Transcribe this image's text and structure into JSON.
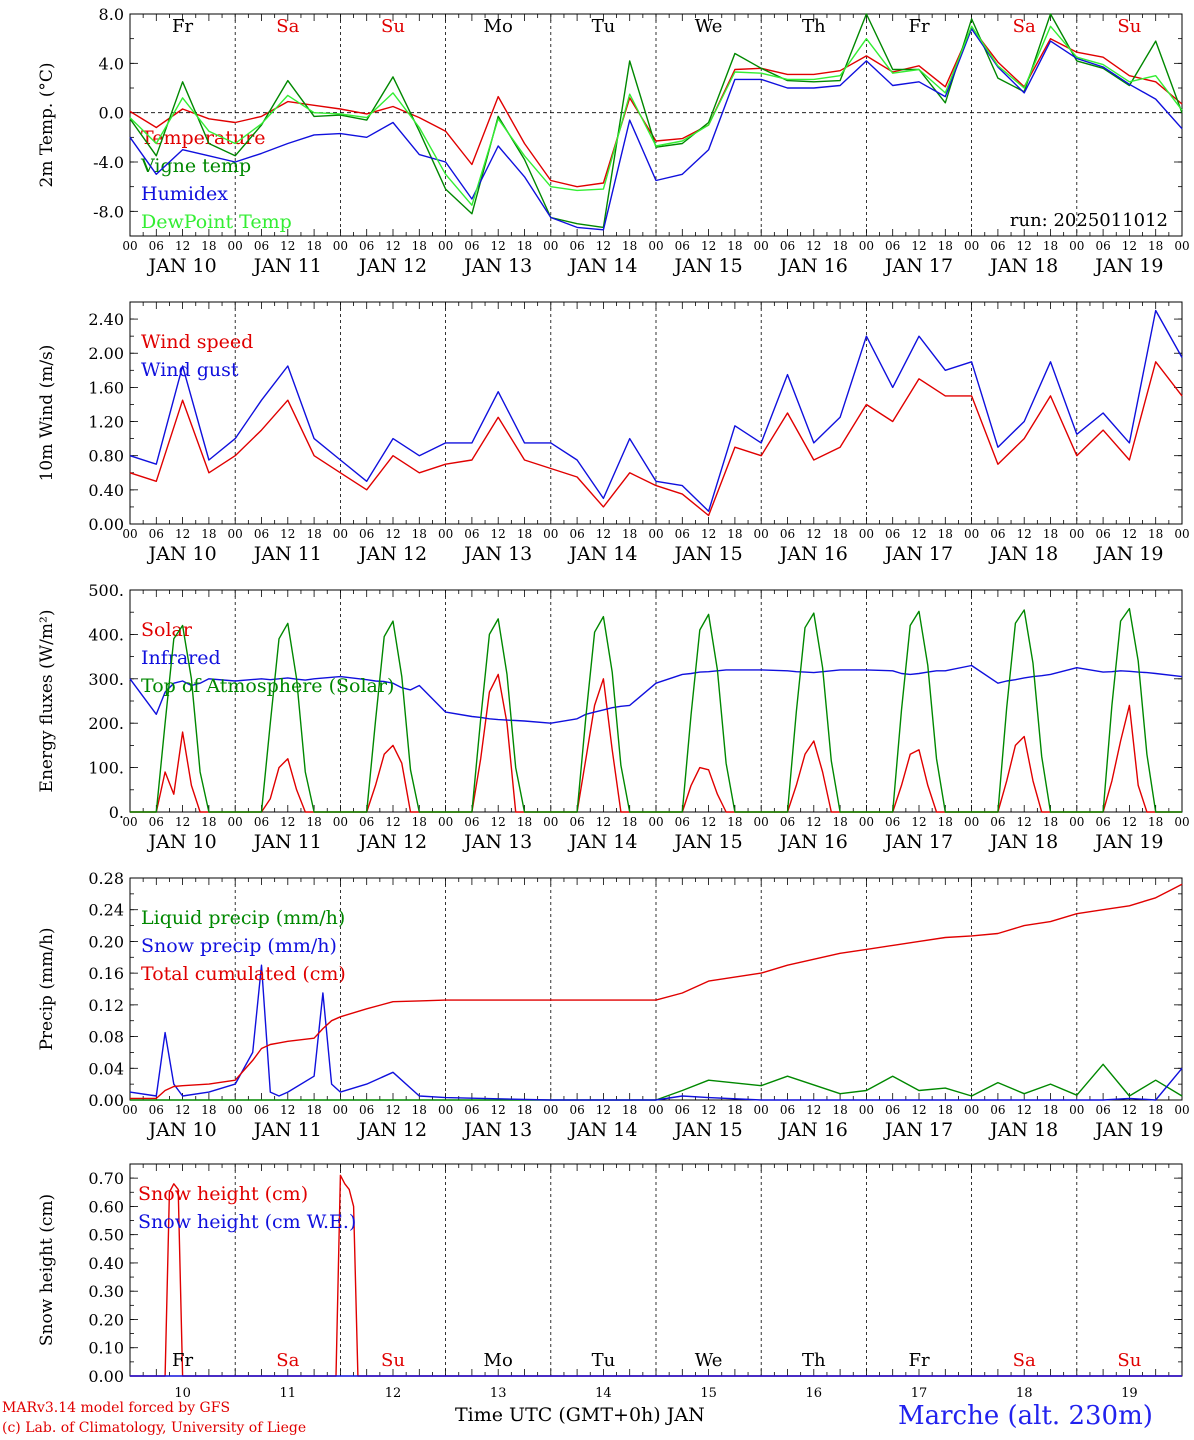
{
  "footer": {
    "model_line": "MARv3.14 model forced by GFS",
    "lab_line": "(c) Lab. of Climatology, University of Liege",
    "time_axis_label": "Time UTC (GMT+0h) JAN",
    "station": "Marche (alt. 230m)"
  },
  "time_axis": {
    "hour_ticks": [
      "00",
      "06",
      "12",
      "18"
    ],
    "final_tick": "00",
    "days": [
      {
        "date": "JAN 10",
        "num": "10",
        "weekday": "Fr",
        "weekend": false
      },
      {
        "date": "JAN 11",
        "num": "11",
        "weekday": "Sa",
        "weekend": true
      },
      {
        "date": "JAN 12",
        "num": "12",
        "weekday": "Su",
        "weekend": true
      },
      {
        "date": "JAN 13",
        "num": "13",
        "weekday": "Mo",
        "weekend": false
      },
      {
        "date": "JAN 14",
        "num": "14",
        "weekday": "Tu",
        "weekend": false
      },
      {
        "date": "JAN 15",
        "num": "15",
        "weekday": "We",
        "weekend": false
      },
      {
        "date": "JAN 16",
        "num": "16",
        "weekday": "Th",
        "weekend": false
      },
      {
        "date": "JAN 17",
        "num": "17",
        "weekday": "Fr",
        "weekend": false
      },
      {
        "date": "JAN 18",
        "num": "18",
        "weekday": "Sa",
        "weekend": true
      },
      {
        "date": "JAN 19",
        "num": "19",
        "weekday": "Su",
        "weekend": true
      }
    ]
  },
  "colors": {
    "red": "#e00000",
    "green": "#008800",
    "blue": "#1010dd",
    "lightgreen": "#33ee33",
    "weekend": "#e00000",
    "axis": "#000000"
  },
  "chart_data": [
    {
      "type": "line",
      "ylabel": "2m Temp. (°C)",
      "ylim": [
        -10,
        8
      ],
      "yticks": [
        "8.0",
        "4.0",
        "0.0",
        "-4.0",
        "-8.0"
      ],
      "ytick_values": [
        8,
        4,
        0,
        -4,
        -8
      ],
      "zero_line": true,
      "annotation": "run: 2025011012",
      "x_hours": [
        0,
        6,
        12,
        18,
        24,
        30,
        36,
        42,
        48,
        54,
        60,
        66,
        72,
        78,
        84,
        90,
        96,
        102,
        108,
        114,
        120,
        126,
        132,
        138,
        144,
        150,
        156,
        162,
        168,
        174,
        180,
        186,
        192,
        198,
        204,
        210,
        216,
        222,
        228,
        234,
        240
      ],
      "series": [
        {
          "name": "Temperature",
          "color": "red",
          "values": [
            0.1,
            -1.2,
            0.3,
            -0.5,
            -0.8,
            -0.3,
            0.9,
            0.6,
            0.3,
            -0.1,
            0.5,
            -0.4,
            -1.5,
            -4.2,
            1.3,
            -2.5,
            -5.5,
            -6.0,
            -5.7,
            1.2,
            -2.3,
            -2.1,
            -1.0,
            3.5,
            3.6,
            3.1,
            3.1,
            3.4,
            4.6,
            3.3,
            3.8,
            2.1,
            6.9,
            4.1,
            2.1,
            6.0,
            4.9,
            4.5,
            3.0,
            2.5,
            0.7
          ]
        },
        {
          "name": "Vigne temp",
          "color": "green",
          "values": [
            -0.5,
            -3.5,
            2.5,
            -2.5,
            -3.5,
            -1.0,
            2.6,
            -0.3,
            -0.2,
            -0.6,
            2.9,
            -1.5,
            -6.2,
            -8.2,
            -0.3,
            -3.8,
            -8.5,
            -9.0,
            -9.3,
            4.2,
            -2.8,
            -2.5,
            -0.8,
            4.8,
            3.6,
            2.6,
            2.5,
            2.6,
            8.0,
            3.5,
            3.5,
            0.8,
            7.6,
            2.8,
            1.7,
            8.0,
            4.2,
            3.6,
            2.2,
            5.8,
            0.0
          ]
        },
        {
          "name": "Humidex",
          "color": "blue",
          "values": [
            -2.0,
            -5.0,
            -3.0,
            -3.5,
            -4.0,
            -3.3,
            -2.5,
            -1.8,
            -1.7,
            -2.0,
            -0.8,
            -3.4,
            -4.0,
            -7.0,
            -2.7,
            -5.2,
            -8.5,
            -9.3,
            -9.5,
            -0.6,
            -5.5,
            -5.0,
            -3.0,
            2.7,
            2.7,
            2.0,
            2.0,
            2.2,
            4.2,
            2.2,
            2.5,
            1.3,
            6.8,
            3.7,
            1.6,
            5.8,
            4.4,
            3.7,
            2.3,
            1.1,
            -1.3
          ]
        },
        {
          "name": "DewPoint Temp",
          "color": "lightgreen",
          "values": [
            -0.4,
            -2.5,
            1.2,
            -1.5,
            -2.5,
            -0.9,
            1.4,
            0.0,
            -0.1,
            -0.4,
            1.6,
            -1.2,
            -5.0,
            -7.5,
            -0.5,
            -3.5,
            -6.0,
            -6.3,
            -6.2,
            1.5,
            -2.7,
            -2.3,
            -1.0,
            3.3,
            3.2,
            2.7,
            2.7,
            3.0,
            6.0,
            3.2,
            3.5,
            1.6,
            7.0,
            3.8,
            2.0,
            7.0,
            4.5,
            3.9,
            2.5,
            3.0,
            0.2
          ]
        }
      ]
    },
    {
      "type": "line",
      "ylabel": "10m Wind (m/s)",
      "ylim": [
        0,
        2.6
      ],
      "yticks": [
        "2.40",
        "2.00",
        "1.60",
        "1.20",
        "0.80",
        "0.40",
        "0.00"
      ],
      "ytick_values": [
        2.4,
        2.0,
        1.6,
        1.2,
        0.8,
        0.4,
        0.0
      ],
      "x_hours": [
        0,
        6,
        12,
        18,
        24,
        30,
        36,
        42,
        48,
        54,
        60,
        66,
        72,
        78,
        84,
        90,
        96,
        102,
        108,
        114,
        120,
        126,
        132,
        138,
        144,
        150,
        156,
        162,
        168,
        174,
        180,
        186,
        192,
        198,
        204,
        210,
        216,
        222,
        228,
        234,
        240
      ],
      "series": [
        {
          "name": "Wind speed",
          "color": "red",
          "values": [
            0.6,
            0.5,
            1.45,
            0.6,
            0.8,
            1.1,
            1.45,
            0.8,
            0.6,
            0.4,
            0.8,
            0.6,
            0.7,
            0.75,
            1.25,
            0.75,
            0.65,
            0.55,
            0.2,
            0.6,
            0.45,
            0.35,
            0.1,
            0.9,
            0.8,
            1.3,
            0.75,
            0.9,
            1.4,
            1.2,
            1.7,
            1.5,
            1.5,
            0.7,
            1.0,
            1.5,
            0.8,
            1.1,
            0.75,
            1.9,
            1.5
          ]
        },
        {
          "name": "Wind gust",
          "color": "blue",
          "values": [
            0.8,
            0.7,
            1.85,
            0.75,
            1.0,
            1.45,
            1.85,
            1.0,
            0.75,
            0.5,
            1.0,
            0.8,
            0.95,
            0.95,
            1.55,
            0.95,
            0.95,
            0.75,
            0.3,
            1.0,
            0.5,
            0.45,
            0.15,
            1.15,
            0.95,
            1.75,
            0.95,
            1.25,
            2.2,
            1.6,
            2.2,
            1.8,
            1.9,
            0.9,
            1.2,
            1.9,
            1.05,
            1.3,
            0.95,
            2.5,
            1.95
          ]
        }
      ]
    },
    {
      "type": "line",
      "ylabel": "Energy fluxes (W/m²)",
      "ylim": [
        0,
        500
      ],
      "yticks": [
        "500.",
        "400.",
        "300.",
        "200.",
        "100.",
        "0."
      ],
      "ytick_values": [
        500,
        400,
        300,
        200,
        100,
        0
      ],
      "x_hours": [
        0,
        6,
        8,
        10,
        12,
        14,
        16,
        18,
        24,
        30,
        32,
        34,
        36,
        38,
        40,
        42,
        48,
        54,
        56,
        58,
        60,
        62,
        64,
        66,
        72,
        78,
        80,
        82,
        84,
        86,
        88,
        90,
        96,
        102,
        104,
        106,
        108,
        110,
        112,
        114,
        120,
        126,
        128,
        130,
        132,
        134,
        136,
        138,
        144,
        150,
        152,
        154,
        156,
        158,
        160,
        162,
        168,
        174,
        176,
        178,
        180,
        182,
        184,
        186,
        192,
        198,
        200,
        202,
        204,
        206,
        208,
        210,
        216,
        222,
        224,
        226,
        228,
        230,
        232,
        234,
        240
      ],
      "series": [
        {
          "name": "Solar",
          "color": "red",
          "values": [
            0,
            0,
            90,
            40,
            180,
            60,
            0,
            0,
            0,
            0,
            30,
            100,
            120,
            50,
            0,
            0,
            0,
            0,
            60,
            130,
            150,
            110,
            0,
            0,
            0,
            0,
            120,
            270,
            310,
            200,
            0,
            0,
            0,
            0,
            120,
            240,
            300,
            140,
            0,
            0,
            0,
            0,
            60,
            100,
            95,
            40,
            0,
            0,
            0,
            0,
            60,
            130,
            160,
            90,
            0,
            0,
            0,
            0,
            60,
            130,
            140,
            60,
            0,
            0,
            0,
            0,
            70,
            150,
            170,
            70,
            0,
            0,
            0,
            0,
            70,
            160,
            240,
            60,
            0,
            0,
            0
          ]
        },
        {
          "name": "Infrared",
          "color": "blue",
          "values": [
            300,
            220,
            270,
            290,
            295,
            285,
            290,
            300,
            295,
            300,
            298,
            300,
            302,
            299,
            297,
            300,
            305,
            298,
            295,
            294,
            290,
            280,
            275,
            285,
            225,
            215,
            213,
            210,
            208,
            207,
            206,
            205,
            200,
            210,
            220,
            225,
            230,
            235,
            238,
            240,
            290,
            310,
            312,
            315,
            316,
            318,
            320,
            320,
            320,
            318,
            316,
            315,
            314,
            316,
            318,
            320,
            320,
            318,
            312,
            310,
            312,
            315,
            318,
            318,
            330,
            290,
            295,
            298,
            302,
            305,
            307,
            310,
            325,
            315,
            316,
            318,
            317,
            315,
            314,
            312,
            305
          ]
        },
        {
          "name": "Top of Atmosphere (Solar)",
          "color": "green",
          "values": [
            0,
            0,
            200,
            390,
            420,
            300,
            90,
            0,
            0,
            0,
            200,
            390,
            425,
            300,
            90,
            0,
            0,
            0,
            205,
            395,
            430,
            305,
            95,
            0,
            0,
            0,
            210,
            400,
            435,
            310,
            100,
            0,
            0,
            0,
            215,
            405,
            440,
            315,
            105,
            0,
            0,
            0,
            220,
            410,
            445,
            320,
            110,
            0,
            0,
            0,
            225,
            415,
            448,
            325,
            115,
            0,
            0,
            0,
            230,
            420,
            452,
            330,
            120,
            0,
            0,
            0,
            235,
            425,
            455,
            335,
            125,
            0,
            0,
            0,
            240,
            430,
            458,
            340,
            130,
            0,
            0
          ]
        }
      ]
    },
    {
      "type": "line",
      "ylabel": "Precip (mm/h)",
      "ylim": [
        0,
        0.28
      ],
      "yticks": [
        "0.28",
        "0.24",
        "0.20",
        "0.16",
        "0.12",
        "0.08",
        "0.04",
        "0.00"
      ],
      "ytick_values": [
        0.28,
        0.24,
        0.2,
        0.16,
        0.12,
        0.08,
        0.04,
        0.0
      ],
      "x_hours": [
        0,
        6,
        8,
        10,
        12,
        18,
        24,
        28,
        30,
        32,
        34,
        36,
        42,
        44,
        46,
        48,
        54,
        60,
        66,
        72,
        96,
        120,
        126,
        132,
        144,
        150,
        162,
        168,
        174,
        180,
        186,
        192,
        198,
        204,
        210,
        216,
        222,
        228,
        234,
        240
      ],
      "series": [
        {
          "name": "Liquid precip (mm/h)",
          "color": "green",
          "values": [
            0,
            0,
            0,
            0,
            0,
            0,
            0,
            0,
            0,
            0,
            0,
            0,
            0,
            0,
            0,
            0,
            0,
            0,
            0,
            0,
            0,
            0,
            0.012,
            0.025,
            0.018,
            0.03,
            0.008,
            0.012,
            0.03,
            0.012,
            0.015,
            0.005,
            0.022,
            0.008,
            0.02,
            0.006,
            0.045,
            0.005,
            0.025,
            0.005
          ]
        },
        {
          "name": "Snow precip (mm/h)",
          "color": "blue",
          "values": [
            0.01,
            0.005,
            0.085,
            0.02,
            0.005,
            0.01,
            0.02,
            0.06,
            0.17,
            0.01,
            0.005,
            0.01,
            0.03,
            0.135,
            0.02,
            0.01,
            0.02,
            0.035,
            0.005,
            0.003,
            0.0,
            0.0,
            0.005,
            0.003,
            0.0,
            0.0,
            0.0,
            0.0,
            0.0,
            0.0,
            0.0,
            0.0,
            0.0,
            0.0,
            0.0,
            0.0,
            0.0,
            0.002,
            0.0,
            0.04
          ]
        },
        {
          "name": "Total cumulated (cm)",
          "color": "red",
          "values": [
            0.002,
            0.002,
            0.012,
            0.017,
            0.018,
            0.02,
            0.025,
            0.05,
            0.065,
            0.07,
            0.072,
            0.074,
            0.078,
            0.09,
            0.1,
            0.105,
            0.115,
            0.124,
            0.125,
            0.126,
            0.126,
            0.126,
            0.135,
            0.15,
            0.16,
            0.17,
            0.185,
            0.19,
            0.195,
            0.2,
            0.205,
            0.207,
            0.21,
            0.22,
            0.225,
            0.235,
            0.24,
            0.245,
            0.255,
            0.272
          ]
        }
      ]
    },
    {
      "type": "line",
      "ylabel": "Snow height (cm)",
      "ylim": [
        0,
        0.75
      ],
      "yticks": [
        "0.70",
        "0.60",
        "0.50",
        "0.40",
        "0.30",
        "0.20",
        "0.10",
        "0.00"
      ],
      "ytick_values": [
        0.7,
        0.6,
        0.5,
        0.4,
        0.3,
        0.2,
        0.1,
        0.0
      ],
      "x_hours": [
        0,
        8,
        9,
        10,
        11,
        12,
        30,
        36,
        42,
        47,
        48,
        49,
        50,
        51,
        52,
        54,
        60,
        120,
        180,
        240
      ],
      "series": [
        {
          "name": "Snow height (cm)",
          "color": "red",
          "values": [
            0,
            0,
            0.65,
            0.68,
            0.66,
            0,
            0,
            0,
            0,
            0,
            0.71,
            0.68,
            0.66,
            0.6,
            0,
            0,
            0,
            0,
            0,
            0
          ]
        },
        {
          "name": "Snow height (cm W.E.)",
          "color": "blue",
          "values": [
            0,
            0,
            0,
            0,
            0,
            0,
            0,
            0,
            0,
            0,
            0,
            0,
            0,
            0,
            0,
            0,
            0,
            0,
            0,
            0
          ]
        }
      ]
    }
  ]
}
